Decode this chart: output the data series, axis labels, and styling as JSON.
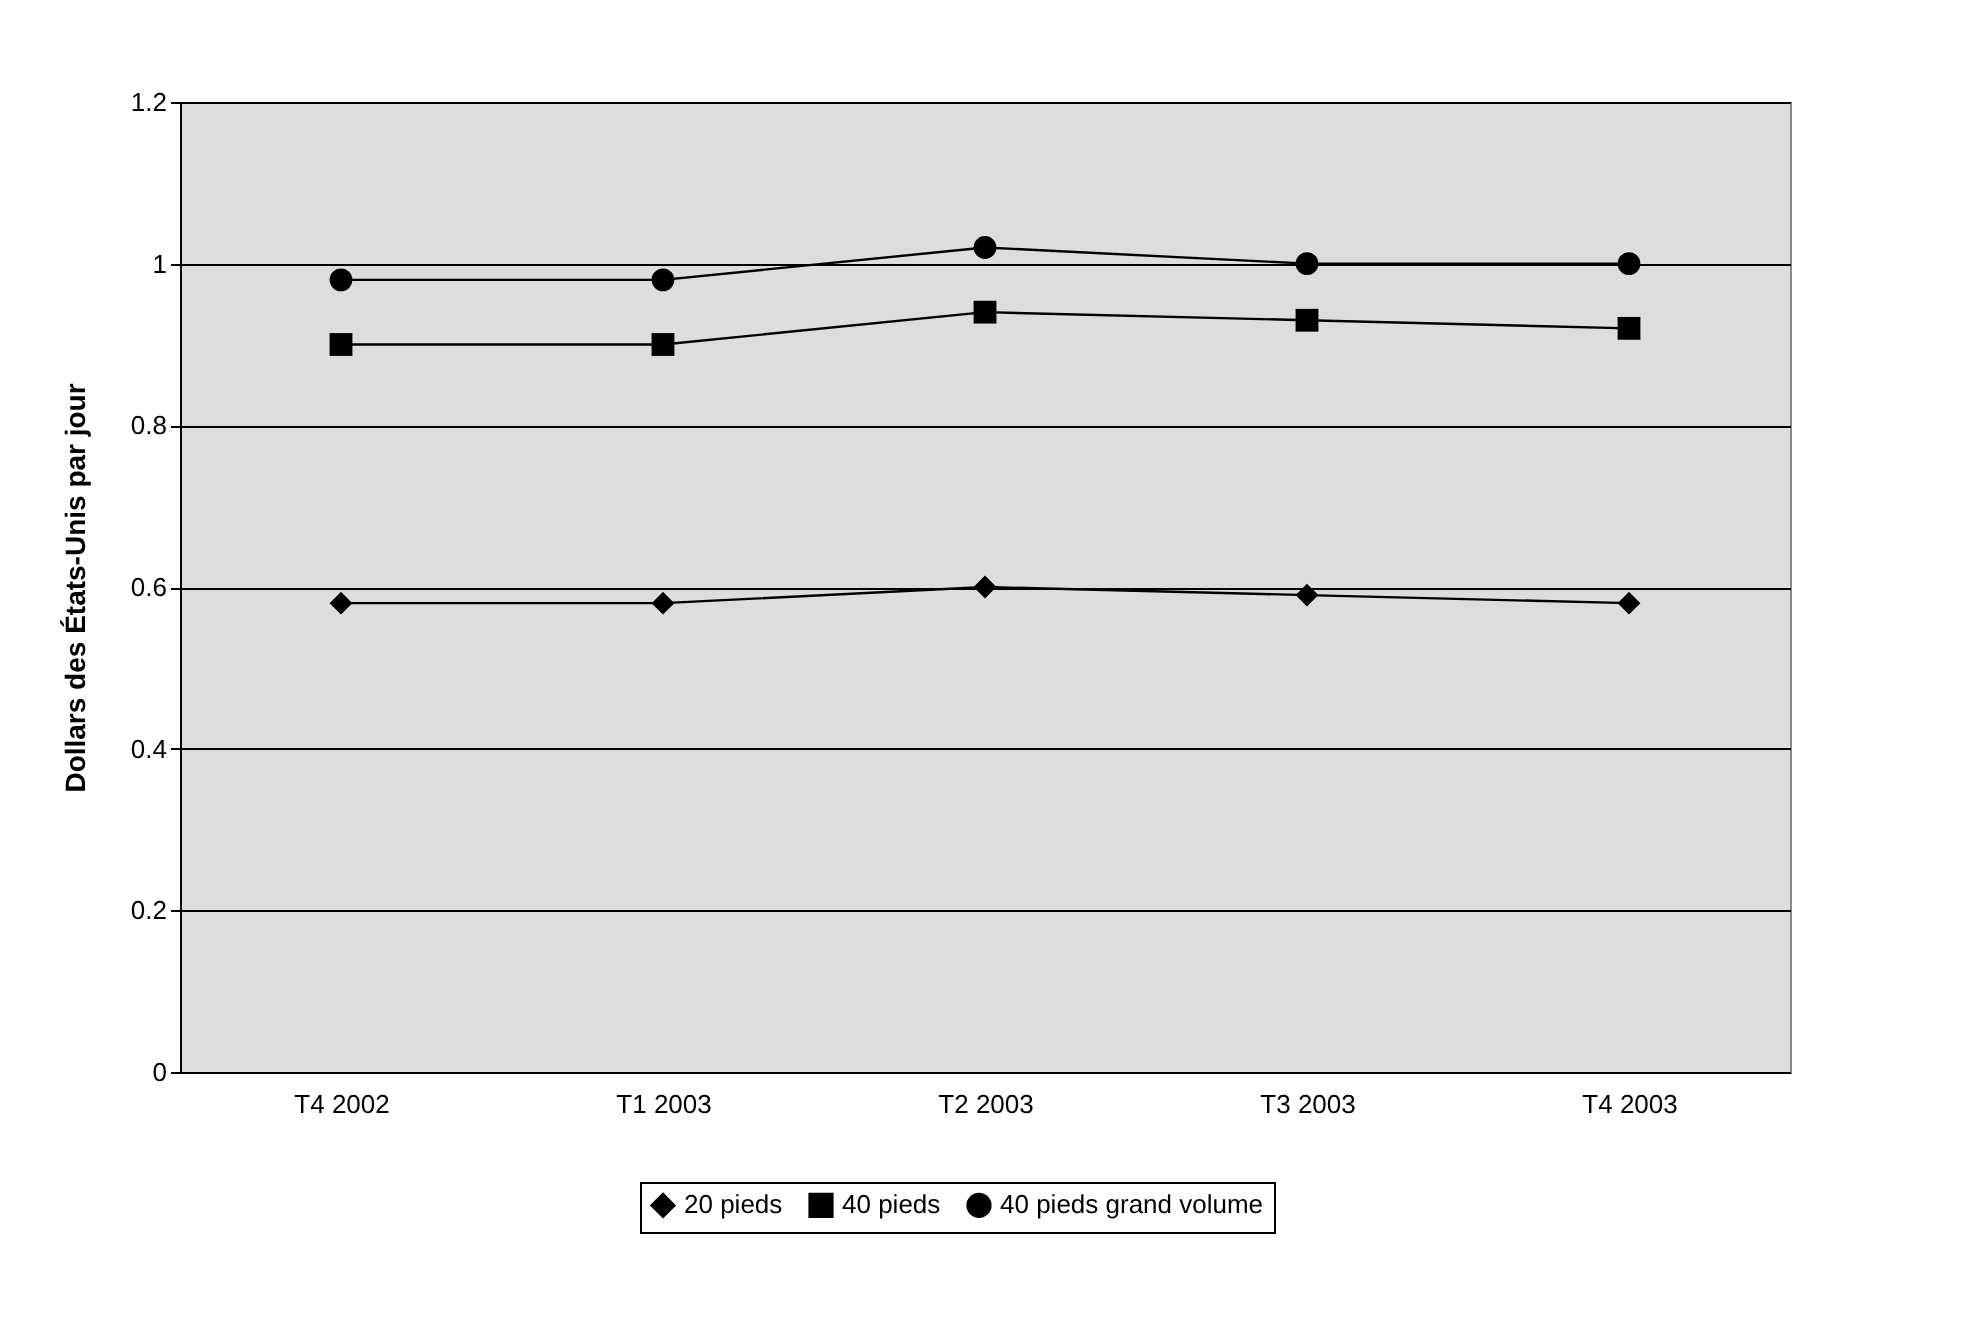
{
  "chart_data": {
    "type": "line",
    "ylabel": "Dollars des États-Unis par jour",
    "categories": [
      "T4 2002",
      "T1 2003",
      "T2 2003",
      "T3 2003",
      "T4 2003"
    ],
    "series": [
      {
        "name": "20 pieds",
        "color": "#000000",
        "marker": "diamond",
        "values": [
          0.58,
          0.58,
          0.6,
          0.59,
          0.58
        ]
      },
      {
        "name": "40 pieds",
        "color": "#000000",
        "marker": "square",
        "values": [
          0.9,
          0.9,
          0.94,
          0.93,
          0.92
        ]
      },
      {
        "name": "40 pieds grand volume",
        "color": "#000000",
        "marker": "circle",
        "values": [
          0.98,
          0.98,
          1.02,
          1.0,
          1.0
        ]
      }
    ],
    "ylim": [
      0,
      1.2
    ],
    "yticks": [
      0,
      0.2,
      0.4,
      0.6,
      0.8,
      1,
      1.2
    ],
    "grid": "y",
    "legend": "bottom",
    "line_style": "solid"
  }
}
